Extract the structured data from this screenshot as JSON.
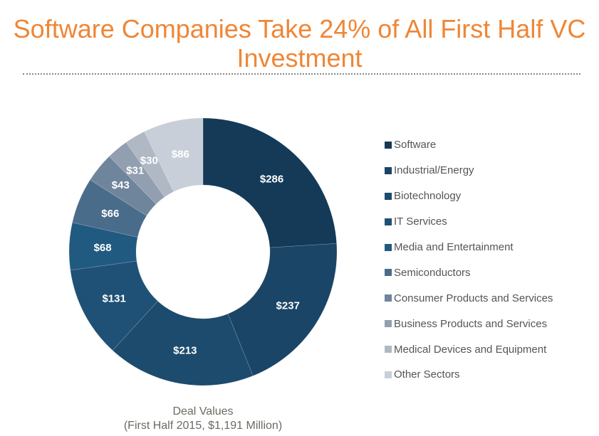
{
  "title": "Software Companies Take 24% of All First Half VC Investment",
  "chart_data": {
    "type": "pie",
    "donut": true,
    "title": "Software Companies Take 24% of All First Half VC Investment",
    "caption_line1": "Deal Values",
    "caption_line2": "(First Half 2015, $1,191 Million)",
    "legend_position": "right",
    "categories": [
      "Software",
      "Industrial/Energy",
      "Biotechnology",
      "IT Services",
      "Media and Entertainment",
      "Semiconductors",
      "Consumer Products and Services",
      "Business Products and Services",
      "Medical Devices and Equipment",
      "Other Sectors"
    ],
    "values": [
      286,
      237,
      213,
      131,
      68,
      66,
      43,
      31,
      30,
      86
    ],
    "labels": [
      "$286",
      "$237",
      "$213",
      "$131",
      "$68",
      "$66",
      "$43",
      "$31",
      "$30",
      "$86"
    ],
    "colors": [
      "#143a58",
      "#1a4566",
      "#1c4b6d",
      "#1f5075",
      "#215a80",
      "#4a6c8b",
      "#6f859c",
      "#929fb0",
      "#b0b8c4",
      "#c8cfd8"
    ]
  }
}
